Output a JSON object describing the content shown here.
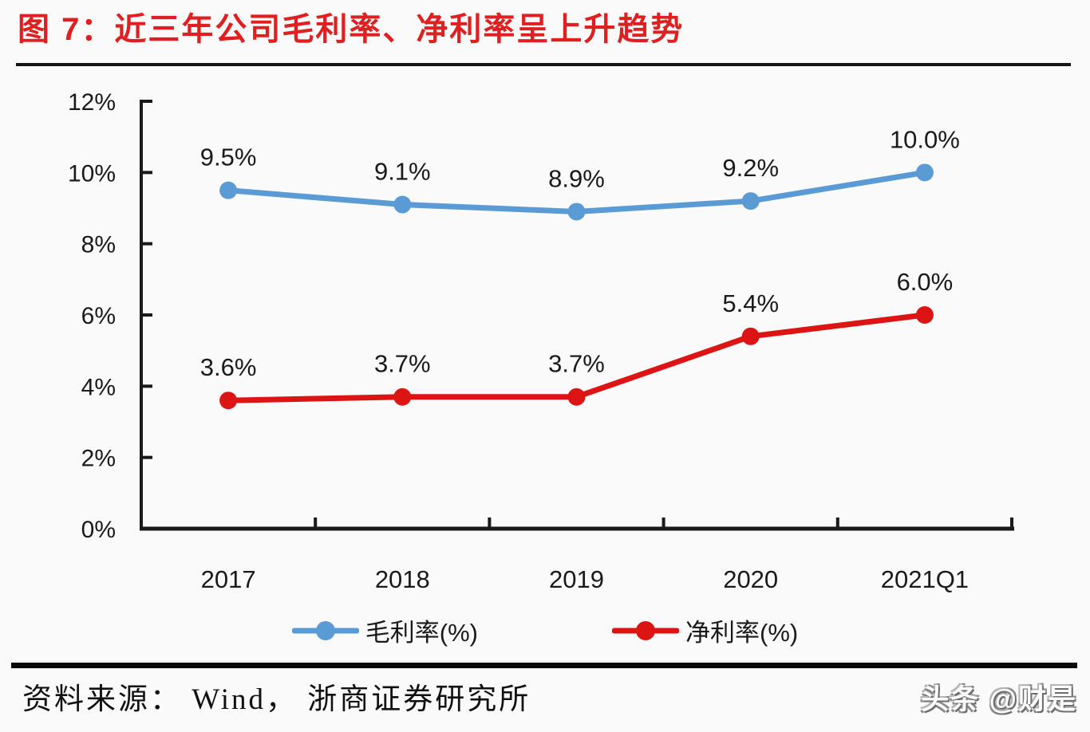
{
  "page": {
    "title": "图 7：近三年公司毛利率、净利率呈上升趋势",
    "title_color": "#E02020",
    "background_color": "#FAFAFA",
    "source_text": "资料来源： Wind， 浙商证券研究所",
    "watermark_text": "头条 @财是"
  },
  "chart_data": {
    "type": "line",
    "title": "近三年公司毛利率、净利率呈上升趋势",
    "categories": [
      "2017",
      "2018",
      "2019",
      "2020",
      "2021Q1"
    ],
    "series": [
      {
        "name": "毛利率(%)",
        "color": "#5B9BD5",
        "values": [
          9.5,
          9.1,
          8.9,
          9.2,
          10.0
        ],
        "point_labels": [
          "9.5%",
          "9.1%",
          "8.9%",
          "9.2%",
          "10.0%"
        ]
      },
      {
        "name": "净利率(%)",
        "color": "#DC1414",
        "values": [
          3.6,
          3.7,
          3.7,
          5.4,
          6.0
        ],
        "point_labels": [
          "3.6%",
          "3.7%",
          "3.7%",
          "5.4%",
          "6.0%"
        ]
      }
    ],
    "xlabel": "",
    "ylabel": "",
    "ylim": [
      0,
      12
    ],
    "ytick_step": 2,
    "ytick_labels": [
      "0%",
      "2%",
      "4%",
      "6%",
      "8%",
      "10%",
      "12%"
    ],
    "grid": false,
    "legend_position": "bottom",
    "axis_color": "#1A1A1A",
    "text_color": "#1A1A1A"
  }
}
